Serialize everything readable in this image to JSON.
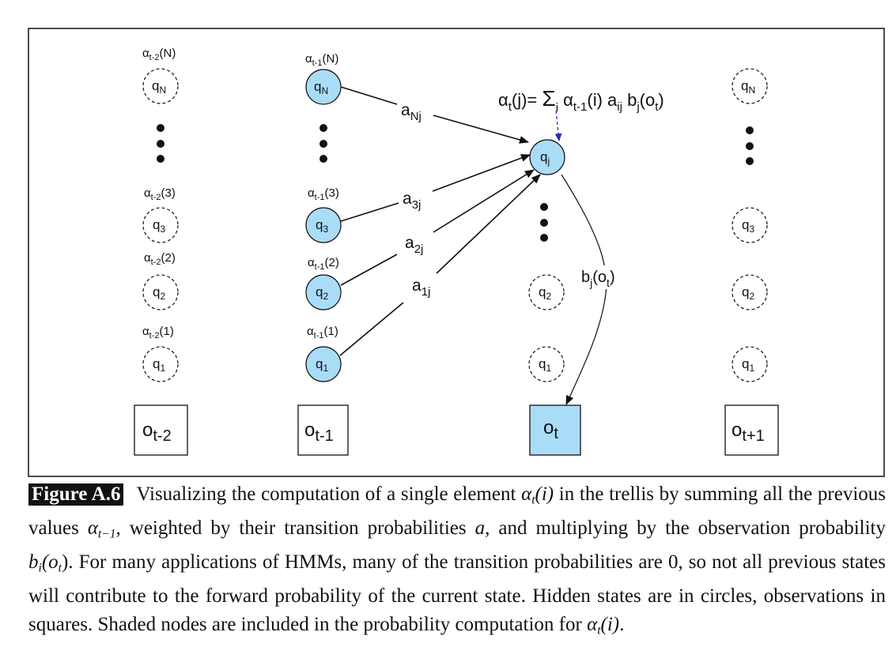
{
  "diagram": {
    "formula": {
      "alpha": "α",
      "t": "t",
      "j": "(j)= ",
      "sigma": "Σ",
      "i": "i",
      "alpha2": " α",
      "tm1": "t-1",
      "rest1": "(i) a",
      "ij": "ij",
      "b": " b",
      "j2": "j",
      "o": "(o",
      "t2": "t",
      "close": ")"
    },
    "alpha_labels": {
      "t2_N": {
        "a": "α",
        "sub": "t-2",
        "paren": "(N)"
      },
      "t2_3": {
        "a": "α",
        "sub": "t-2",
        "paren": "(3)"
      },
      "t2_2": {
        "a": "α",
        "sub": "t-2",
        "paren": "(2)"
      },
      "t2_1": {
        "a": "α",
        "sub": "t-2",
        "paren": "(1)"
      },
      "t1_N": {
        "a": "α",
        "sub": "t-1",
        "paren": "(N)"
      },
      "t1_3": {
        "a": "α",
        "sub": "t-1",
        "paren": "(3)"
      },
      "t1_2": {
        "a": "α",
        "sub": "t-1",
        "paren": "(2)"
      },
      "t1_1": {
        "a": "α",
        "sub": "t-1",
        "paren": "(1)"
      }
    },
    "states": {
      "q": "q",
      "N": "N",
      "three": "3",
      "two": "2",
      "one": "1",
      "j": "j"
    },
    "edge_labels": {
      "aNj": {
        "a": "a",
        "sub": "Nj"
      },
      "a3j": {
        "a": "a",
        "sub": "3j"
      },
      "a2j": {
        "a": "a",
        "sub": "2j"
      },
      "a1j": {
        "a": "a",
        "sub": "1j"
      },
      "bj": {
        "b": "b",
        "sub": "j",
        "rest": "(o",
        "t": "t",
        "close": ")"
      }
    },
    "observations": {
      "o": "o",
      "t_minus_2": "t-2",
      "t_minus_1": "t-1",
      "t": "t",
      "t_plus_1": "t+1"
    },
    "colors": {
      "shaded": "#a9dcf7",
      "stroke": "#1a1a1a",
      "dash": "#1a1a1a",
      "formula_arrow": "#2233bb"
    }
  },
  "caption": {
    "label": "Figure A.6",
    "p1": "Visualizing the computation of a single element ",
    "alpha": "α",
    "t": "t",
    "i1": "(i)",
    "p2": " in the trellis by summing all the previous values ",
    "alpha2": "α",
    "tm1": "t−1",
    "p3": ", weighted by their transition probabilities ",
    "a": "a",
    "p4": ", and multiplying by the observation probability ",
    "b": "b",
    "bi": "i",
    "ot": "(o",
    "t2": "t",
    "close": ")",
    "p5": ". For many applications of HMMs, many of the transition probabilities are 0, so not all previous states will contribute to the forward probability of the current state. Hidden states are in circles, observations in squares. Shaded nodes are included in the probability computation for ",
    "alpha3": "α",
    "t3": "t",
    "i3": "(i)",
    "end": "."
  }
}
